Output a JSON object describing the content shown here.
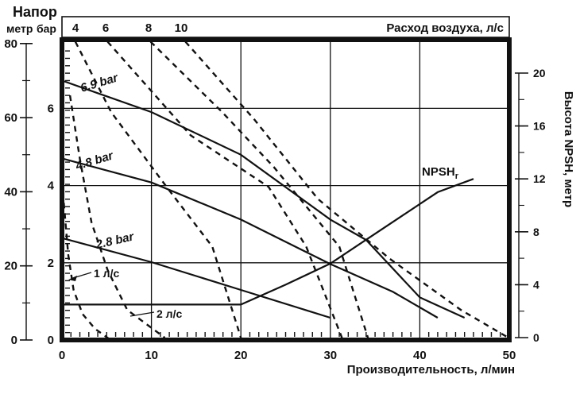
{
  "head_axis": {
    "title": "Напор",
    "unit_m": "метр",
    "unit_bar": "бар",
    "ticks_m": [
      80,
      60,
      40,
      20,
      0
    ],
    "ticks_bar": [
      6,
      4,
      2,
      0
    ]
  },
  "top_axis": {
    "title": "Расход воздуха, л/с",
    "ticks": [
      "4",
      "6",
      "8",
      "10"
    ]
  },
  "bottom_axis": {
    "title": "Производительность, л/мин",
    "ticks": [
      0,
      10,
      20,
      30,
      40,
      50
    ]
  },
  "right_axis": {
    "title": "Высота NPSH, метр",
    "ticks": [
      20,
      16,
      12,
      8,
      4,
      0
    ]
  },
  "labels": {
    "curve_69": "6.9 bar",
    "curve_48": "4.8 bar",
    "curve_28": "2.8 bar",
    "npsh": "NPSH",
    "npsh_sub": "r",
    "air1": "1 л/с",
    "air2": "2 л/с"
  },
  "colors": {
    "ink": "#111111",
    "background": "#ffffff"
  },
  "chart_data": {
    "type": "line",
    "title": "",
    "xlabel": "Производительность, л/мин",
    "ylabel_left": "Напор, метр / бар",
    "ylabel_right": "Высота NPSH, метр",
    "xlim": [
      0,
      50
    ],
    "ylim_m": [
      0,
      80
    ],
    "ylim_bar": [
      0,
      8
    ],
    "ylim_npsh": [
      0,
      20
    ],
    "grid": {
      "x_lines": [
        10,
        20,
        30,
        40
      ],
      "bar_lines": [
        2,
        4,
        6
      ]
    },
    "legend_position": "inline-labels",
    "pressure_curves_m": [
      {
        "name": "6.9 bar",
        "points": [
          [
            0,
            70
          ],
          [
            10,
            61.5
          ],
          [
            20,
            50
          ],
          [
            30,
            32.5
          ],
          [
            34,
            27
          ],
          [
            40,
            11.5
          ],
          [
            45,
            6
          ]
        ]
      },
      {
        "name": "4.8 bar",
        "points": [
          [
            0,
            49
          ],
          [
            10,
            42.5
          ],
          [
            20,
            32.5
          ],
          [
            30,
            20.5
          ],
          [
            37,
            13
          ],
          [
            42,
            6
          ]
        ]
      },
      {
        "name": "2.8 bar",
        "points": [
          [
            0,
            27.5
          ],
          [
            10,
            21
          ],
          [
            20,
            13.5
          ],
          [
            30,
            6
          ]
        ]
      }
    ],
    "npsh_curve": {
      "name": "NPSHr",
      "axis": "right",
      "points": [
        [
          0,
          2.5
        ],
        [
          20,
          2.5
        ],
        [
          25,
          4
        ],
        [
          30,
          5.6
        ],
        [
          34,
          7.4
        ],
        [
          38,
          9.2
        ],
        [
          42,
          11
        ],
        [
          46,
          12
        ]
      ]
    },
    "air_consumption_curves_m": [
      {
        "name": "1 л/с",
        "points": [
          [
            0.2,
            37
          ],
          [
            0.7,
            23
          ],
          [
            1.3,
            13.5
          ],
          [
            2.3,
            7
          ],
          [
            3.7,
            3
          ],
          [
            5.2,
            0.4
          ]
        ]
      },
      {
        "name": "2 л/с",
        "points": [
          [
            0.9,
            66
          ],
          [
            2,
            48.9
          ],
          [
            3.3,
            31.7
          ],
          [
            5.1,
            18.9
          ],
          [
            7.3,
            8.1
          ],
          [
            11.5,
            0.6
          ]
        ]
      },
      {
        "name": "4 л/с",
        "points": [
          [
            1.5,
            80.5
          ],
          [
            5.5,
            61.5
          ],
          [
            11.7,
            41.3
          ],
          [
            16.8,
            25.2
          ],
          [
            20,
            0.6
          ]
        ]
      },
      {
        "name": "6 л/с",
        "points": [
          [
            5.1,
            80.5
          ],
          [
            14.4,
            55.2
          ],
          [
            23.1,
            41.3
          ],
          [
            27.3,
            25.2
          ],
          [
            31.3,
            0.6
          ]
        ]
      },
      {
        "name": "8 л/с",
        "points": [
          [
            9.9,
            80.5
          ],
          [
            17.9,
            61.5
          ],
          [
            23.7,
            46.6
          ],
          [
            31,
            25.2
          ],
          [
            34.2,
            0.6
          ]
        ]
      },
      {
        "name": "10 л/с",
        "points": [
          [
            13.8,
            80.5
          ],
          [
            21.5,
            59.5
          ],
          [
            28.6,
            38.1
          ],
          [
            36.6,
            22
          ],
          [
            44.6,
            8.1
          ],
          [
            49.7,
            0.9
          ]
        ]
      }
    ]
  }
}
